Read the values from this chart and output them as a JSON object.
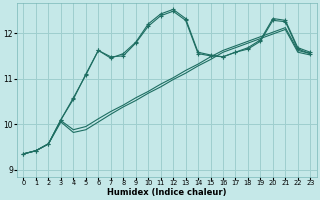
{
  "xlabel": "Humidex (Indice chaleur)",
  "bg_color": "#c5e8e8",
  "grid_color": "#9ecece",
  "line_color": "#1e6e62",
  "xlim": [
    -0.5,
    23.5
  ],
  "ylim": [
    8.85,
    12.65
  ],
  "yticks": [
    9,
    10,
    11,
    12
  ],
  "xticks": [
    0,
    1,
    2,
    3,
    4,
    5,
    6,
    7,
    8,
    9,
    10,
    11,
    12,
    13,
    14,
    15,
    16,
    17,
    18,
    19,
    20,
    21,
    22,
    23
  ],
  "line1_x": [
    0,
    1,
    2,
    3,
    4,
    5,
    6,
    7,
    8,
    9,
    10,
    11,
    12,
    13,
    14,
    15,
    16,
    17,
    18,
    19,
    20,
    21,
    22,
    23
  ],
  "line1_y": [
    9.35,
    9.42,
    9.57,
    10.1,
    10.58,
    11.08,
    11.62,
    11.45,
    11.55,
    11.8,
    12.2,
    12.42,
    12.52,
    12.32,
    11.58,
    11.52,
    11.48,
    11.58,
    11.68,
    11.85,
    12.32,
    12.28,
    11.68,
    11.58
  ],
  "line2_x": [
    0,
    1,
    2,
    3,
    4,
    5,
    6,
    7,
    8,
    9,
    10,
    11,
    12,
    13,
    14,
    15,
    16,
    17,
    18,
    19,
    20,
    21,
    22,
    23
  ],
  "line2_y": [
    9.35,
    9.42,
    9.57,
    10.1,
    10.55,
    11.1,
    11.62,
    11.48,
    11.5,
    11.78,
    12.15,
    12.38,
    12.48,
    12.28,
    11.55,
    11.5,
    11.48,
    11.58,
    11.65,
    11.82,
    12.28,
    12.25,
    11.65,
    11.55
  ],
  "line3_x": [
    0,
    1,
    2,
    3,
    4,
    5,
    6,
    7,
    8,
    9,
    10,
    11,
    12,
    13,
    14,
    15,
    16,
    17,
    18,
    19,
    20,
    21,
    22,
    23
  ],
  "line3_y": [
    9.35,
    9.42,
    9.57,
    10.08,
    9.88,
    9.95,
    10.12,
    10.28,
    10.42,
    10.58,
    10.72,
    10.88,
    11.02,
    11.18,
    11.32,
    11.48,
    11.62,
    11.72,
    11.82,
    11.92,
    12.02,
    12.12,
    11.62,
    11.55
  ],
  "line4_x": [
    0,
    1,
    2,
    3,
    4,
    5,
    6,
    7,
    8,
    9,
    10,
    11,
    12,
    13,
    14,
    15,
    16,
    17,
    18,
    19,
    20,
    21,
    22,
    23
  ],
  "line4_y": [
    9.35,
    9.42,
    9.57,
    10.05,
    9.82,
    9.88,
    10.05,
    10.22,
    10.38,
    10.52,
    10.68,
    10.82,
    10.98,
    11.12,
    11.28,
    11.42,
    11.58,
    11.68,
    11.78,
    11.88,
    11.98,
    12.08,
    11.58,
    11.52
  ]
}
